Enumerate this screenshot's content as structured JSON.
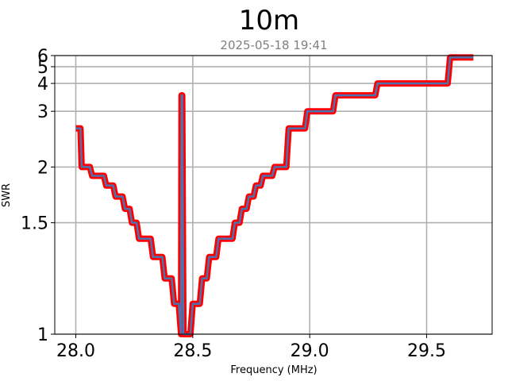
{
  "chart_data": {
    "type": "line",
    "title": "10m",
    "subtitle": "2025-05-18 19:41",
    "xlabel": "Frequency (MHz)",
    "ylabel": "SWR",
    "xlim": [
      27.91,
      29.78
    ],
    "ylim": [
      1.0,
      6.0
    ],
    "y_scale": "reciprocal",
    "grid": true,
    "x_ticks": [
      {
        "value": 28.0,
        "label": "28.0"
      },
      {
        "value": 28.5,
        "label": "28.5"
      },
      {
        "value": 29.0,
        "label": "29.0"
      },
      {
        "value": 29.5,
        "label": "29.5"
      }
    ],
    "y_ticks": [
      {
        "value": 1.0,
        "label": "1"
      },
      {
        "value": 1.5,
        "label": "1.5"
      },
      {
        "value": 2.0,
        "label": "2"
      },
      {
        "value": 3.0,
        "label": "3"
      },
      {
        "value": 4.0,
        "label": "4"
      },
      {
        "value": 5.0,
        "label": "5"
      },
      {
        "value": 6.0,
        "label": "6"
      }
    ],
    "series": [
      {
        "color": "#ff0000",
        "inner_color": "#4c72b0",
        "x": [
          28.0,
          28.02,
          28.025,
          28.06,
          28.07,
          28.12,
          28.13,
          28.16,
          28.17,
          28.2,
          28.21,
          28.23,
          28.24,
          28.26,
          28.27,
          28.32,
          28.33,
          28.37,
          28.38,
          28.41,
          28.42,
          28.44,
          28.45,
          28.452,
          28.455,
          28.46,
          28.465,
          28.47,
          28.48,
          28.49,
          28.5,
          28.53,
          28.54,
          28.56,
          28.57,
          28.6,
          28.61,
          28.67,
          28.68,
          28.7,
          28.71,
          28.73,
          28.74,
          28.76,
          28.77,
          28.79,
          28.8,
          28.84,
          28.85,
          28.9,
          28.91,
          28.98,
          28.99,
          29.1,
          29.11,
          29.28,
          29.29,
          29.59,
          29.6,
          29.7
        ],
        "y": [
          2.6,
          2.6,
          2.0,
          2.0,
          1.9,
          1.9,
          1.8,
          1.8,
          1.7,
          1.7,
          1.6,
          1.6,
          1.5,
          1.5,
          1.4,
          1.4,
          1.3,
          1.3,
          1.2,
          1.2,
          1.1,
          1.1,
          1.0,
          3.5,
          3.5,
          1.0,
          1.0,
          1.0,
          1.0,
          1.0,
          1.1,
          1.1,
          1.2,
          1.2,
          1.3,
          1.3,
          1.4,
          1.4,
          1.5,
          1.5,
          1.6,
          1.6,
          1.7,
          1.7,
          1.8,
          1.8,
          1.9,
          1.9,
          2.0,
          2.0,
          2.6,
          2.6,
          3.0,
          3.0,
          3.5,
          3.5,
          4.0,
          4.0,
          5.8,
          5.8
        ]
      }
    ]
  }
}
